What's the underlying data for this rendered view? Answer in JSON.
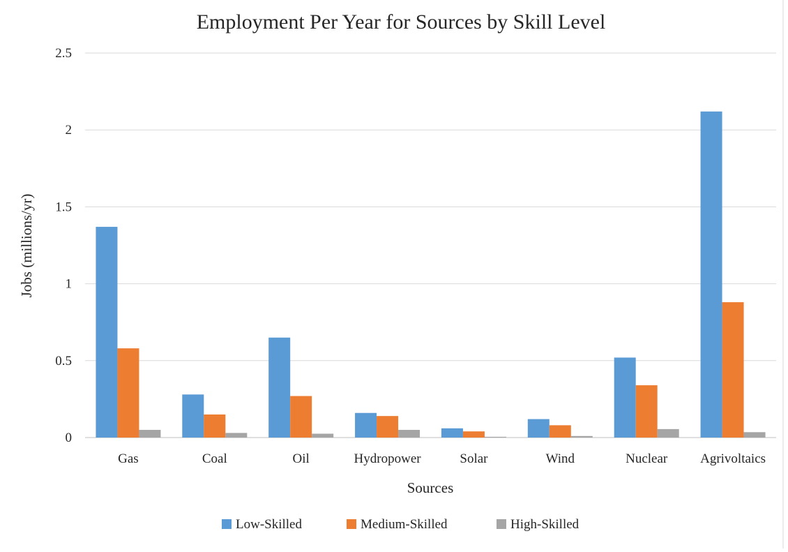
{
  "colors": {
    "low": "#5b9bd5",
    "medium": "#ed7d31",
    "high": "#a5a5a5",
    "grid": "#d9d9d9",
    "axis": "#bfbfbf",
    "text": "#262626"
  },
  "chart_data": {
    "type": "bar",
    "title": "Employment Per Year for Sources by Skill Level",
    "xlabel": "Sources",
    "ylabel": "Jobs (millions/yr)",
    "ylim": [
      0,
      2.5
    ],
    "yticks": [
      "0",
      "0.5",
      "1",
      "1.5",
      "2",
      "2.5"
    ],
    "ytick_values": [
      0,
      0.5,
      1,
      1.5,
      2,
      2.5
    ],
    "grid": true,
    "legend_position": "bottom",
    "categories": [
      "Gas",
      "Coal",
      "Oil",
      "Hydropower",
      "Solar",
      "Wind",
      "Nuclear",
      "Agrivoltaics"
    ],
    "series": [
      {
        "name": "Low-Skilled",
        "values": [
          1.37,
          0.28,
          0.65,
          0.16,
          0.06,
          0.12,
          0.52,
          2.12
        ]
      },
      {
        "name": "Medium-Skilled",
        "values": [
          0.58,
          0.15,
          0.27,
          0.14,
          0.04,
          0.08,
          0.34,
          0.88
        ]
      },
      {
        "name": "High-Skilled",
        "values": [
          0.05,
          0.03,
          0.025,
          0.05,
          0.005,
          0.01,
          0.055,
          0.035
        ]
      }
    ]
  }
}
